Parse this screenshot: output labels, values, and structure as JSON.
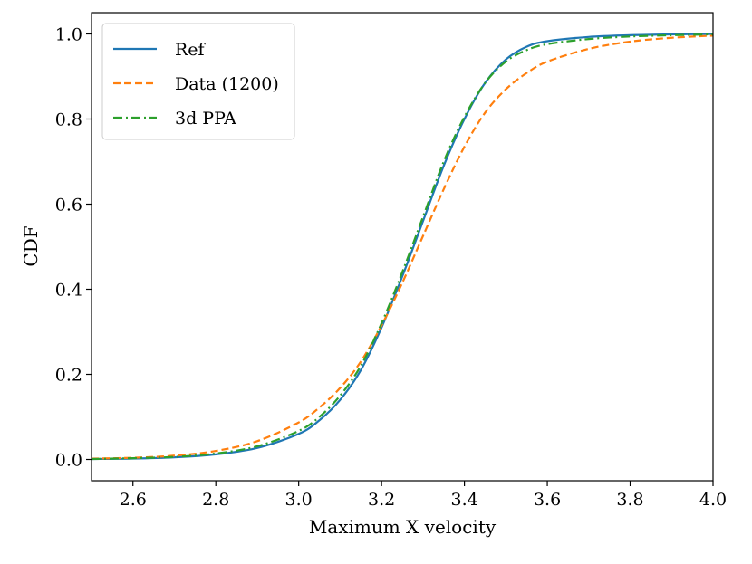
{
  "chart_data": {
    "type": "line",
    "title": "",
    "xlabel": "Maximum X velocity",
    "ylabel": "CDF",
    "xlim": [
      2.5,
      4.0
    ],
    "ylim": [
      -0.05,
      1.05
    ],
    "xticks": [
      2.6,
      2.8,
      3.0,
      3.2,
      3.4,
      3.6,
      3.8,
      4.0
    ],
    "xtick_labels": [
      "2.6",
      "2.8",
      "3.0",
      "3.2",
      "3.4",
      "3.6",
      "3.8",
      "4.0"
    ],
    "yticks": [
      0.0,
      0.2,
      0.4,
      0.6,
      0.8,
      1.0
    ],
    "ytick_labels": [
      "0.0",
      "0.2",
      "0.4",
      "0.6",
      "0.8",
      "1.0"
    ],
    "grid": false,
    "legend_position": "top-left",
    "series": [
      {
        "name": "Ref",
        "color": "#1f77b4",
        "style": "solid",
        "x": [
          2.5,
          2.6,
          2.7,
          2.8,
          2.9,
          3.0,
          3.05,
          3.1,
          3.15,
          3.2,
          3.25,
          3.3,
          3.35,
          3.4,
          3.45,
          3.5,
          3.55,
          3.6,
          3.7,
          3.8,
          3.9,
          4.0
        ],
        "y": [
          0.001,
          0.002,
          0.005,
          0.012,
          0.027,
          0.06,
          0.092,
          0.14,
          0.21,
          0.31,
          0.43,
          0.56,
          0.69,
          0.8,
          0.885,
          0.94,
          0.97,
          0.983,
          0.993,
          0.997,
          0.999,
          1.0
        ]
      },
      {
        "name": "Data (1200)",
        "color": "#ff7f0e",
        "style": "dashed",
        "x": [
          2.5,
          2.6,
          2.7,
          2.8,
          2.9,
          3.0,
          3.05,
          3.1,
          3.15,
          3.2,
          3.25,
          3.3,
          3.35,
          3.4,
          3.45,
          3.5,
          3.55,
          3.6,
          3.7,
          3.8,
          3.9,
          4.0
        ],
        "y": [
          0.002,
          0.004,
          0.009,
          0.02,
          0.043,
          0.087,
          0.122,
          0.168,
          0.23,
          0.315,
          0.415,
          0.525,
          0.635,
          0.735,
          0.815,
          0.87,
          0.908,
          0.935,
          0.965,
          0.982,
          0.991,
          0.996
        ]
      },
      {
        "name": "3d PPA",
        "color": "#2ca02c",
        "style": "dashdot",
        "x": [
          2.5,
          2.6,
          2.7,
          2.8,
          2.9,
          3.0,
          3.05,
          3.1,
          3.15,
          3.2,
          3.25,
          3.3,
          3.35,
          3.4,
          3.45,
          3.5,
          3.55,
          3.6,
          3.7,
          3.8,
          3.9,
          4.0
        ],
        "y": [
          0.001,
          0.003,
          0.006,
          0.014,
          0.031,
          0.067,
          0.1,
          0.15,
          0.22,
          0.32,
          0.44,
          0.57,
          0.7,
          0.805,
          0.885,
          0.935,
          0.962,
          0.976,
          0.988,
          0.994,
          0.997,
          0.999
        ]
      }
    ]
  }
}
